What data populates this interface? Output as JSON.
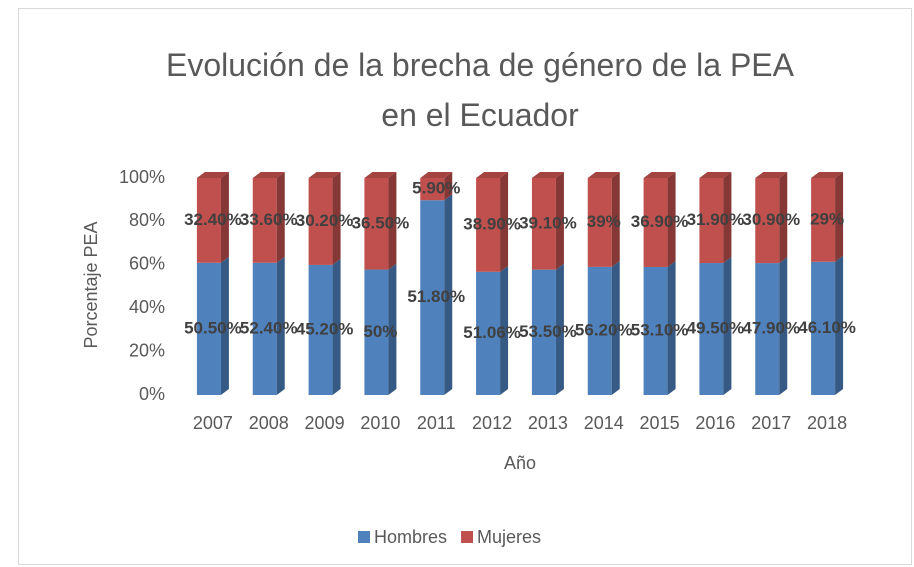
{
  "chart_data": {
    "type": "bar",
    "stacking": "percent",
    "title": "Evolución de la brecha de género de la PEA en el Ecuador",
    "x_label": "Año",
    "y_label": "Porcentaje PEA",
    "categories": [
      "2007",
      "2008",
      "2009",
      "2010",
      "2011",
      "2012",
      "2013",
      "2014",
      "2015",
      "2016",
      "2017",
      "2018"
    ],
    "series": [
      {
        "name": "Hombres",
        "color": "#4f81bd",
        "values": [
          50.5,
          52.4,
          45.2,
          50,
          51.8,
          51.06,
          53.5,
          56.2,
          53.1,
          49.5,
          47.9,
          46.1
        ],
        "value_labels": [
          "50.50%",
          "52.40%",
          "45.20%",
          "50%",
          "51.80%",
          "51.06%",
          "53.50%",
          "56.20%",
          "53.10%",
          "49.50%",
          "47.90%",
          "46.10%"
        ]
      },
      {
        "name": "Mujeres",
        "color": "#c0504d",
        "values": [
          32.4,
          33.6,
          30.2,
          36.5,
          5.9,
          38.9,
          39.1,
          39,
          36.9,
          31.9,
          30.9,
          29
        ],
        "value_labels": [
          "32.40%",
          "33.60%",
          "30.20%",
          "36.50%",
          "5.90%",
          "38.90%",
          "39.10%",
          "39%",
          "36.90%",
          "31.90%",
          "30.90%",
          "29%"
        ]
      }
    ],
    "ylim": [
      0,
      100
    ],
    "yticks": [
      {
        "value": 0,
        "label": "0%"
      },
      {
        "value": 20,
        "label": "20%"
      },
      {
        "value": 40,
        "label": "40%"
      },
      {
        "value": 60,
        "label": "60%"
      },
      {
        "value": 80,
        "label": "80%"
      },
      {
        "value": 100,
        "label": "100%"
      }
    ],
    "grid": false,
    "legend": "bottom"
  }
}
